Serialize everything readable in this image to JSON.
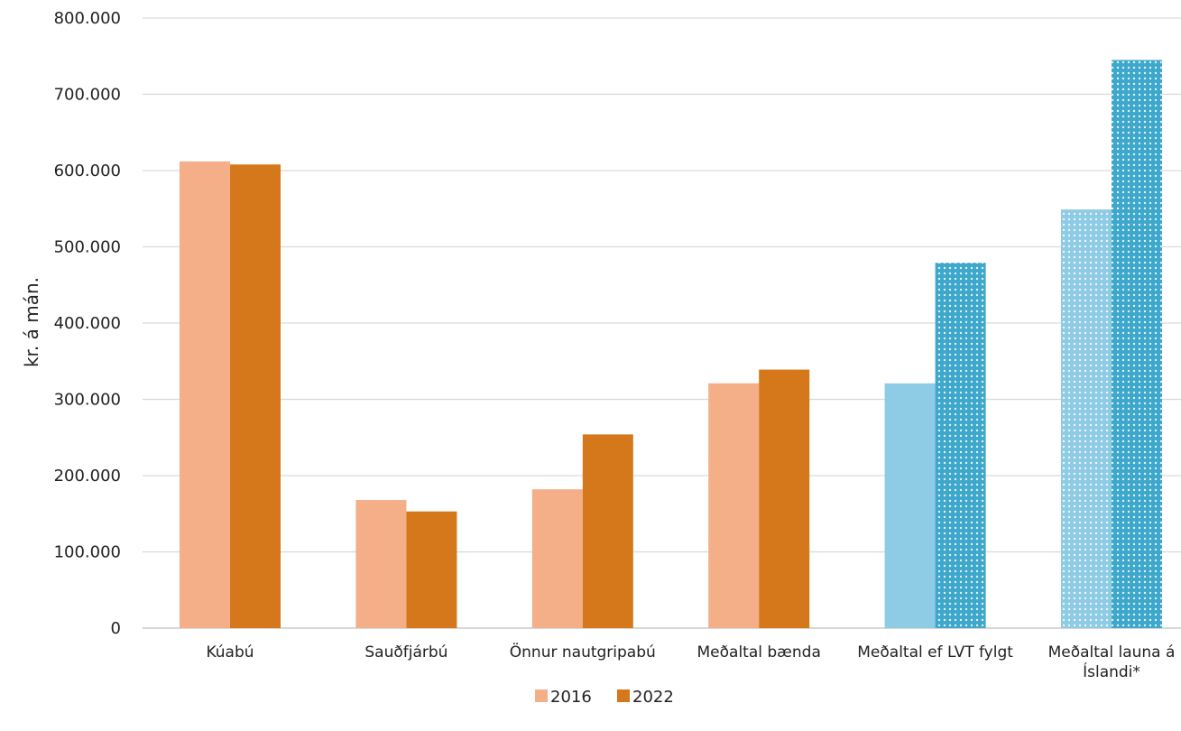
{
  "chart_data": {
    "type": "bar",
    "ylabel": "kr. á mán.",
    "ylim": [
      0,
      800000
    ],
    "y_ticks": [
      "0",
      "100.000",
      "200.000",
      "300.000",
      "400.000",
      "500.000",
      "600.000",
      "700.000",
      "800.000"
    ],
    "grid": true,
    "legend_position": "bottom-center",
    "categories": [
      [
        "Kúabú"
      ],
      [
        "Sauðfjárbú"
      ],
      [
        "Önnur nautgripabú"
      ],
      [
        "Meðaltal bænda"
      ],
      [
        "Meðaltal ef LVT fylgt"
      ],
      [
        "Meðaltal launa á",
        "Íslandi*"
      ]
    ],
    "series": [
      {
        "name": "2016",
        "values": [
          612000,
          168000,
          182000,
          321000,
          321000,
          549000
        ]
      },
      {
        "name": "2022",
        "values": [
          608000,
          153000,
          254000,
          339000,
          479000,
          745000
        ]
      }
    ],
    "colors": {
      "s2016": "#f4ae88",
      "s2022": "#d5781c",
      "blue2016": "#8ecbe5",
      "blue2022": "#3ea7cc",
      "grid": "#d9d9d9",
      "axis": "#bfbfbf"
    }
  }
}
